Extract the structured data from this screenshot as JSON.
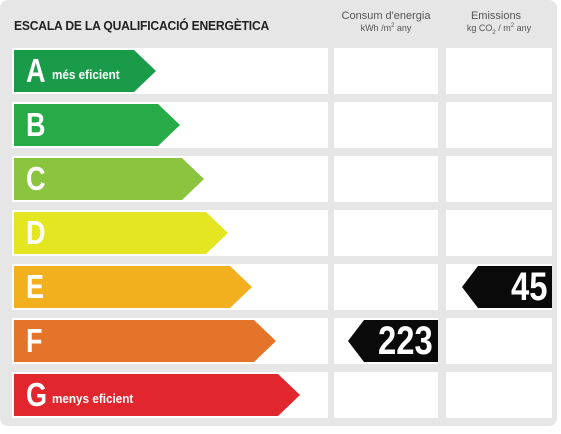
{
  "header": {
    "title": "ESCALA DE LA QUALIFICACIÓ ENERGÈTICA",
    "consum": {
      "line1": "Consum d'energia",
      "unit_pre": "kWh /m",
      "unit_sup": "2",
      "unit_post": " any"
    },
    "emissions": {
      "line1": "Emissions",
      "unit_pre": "kg CO",
      "unit_sub": "2",
      "unit_mid": " / m",
      "unit_sup": "2",
      "unit_post": " any"
    }
  },
  "ratings": [
    {
      "letter": "A",
      "label": "més eficient",
      "color": "#1a9b4a"
    },
    {
      "letter": "B",
      "label": "",
      "color": "#27ab47"
    },
    {
      "letter": "C",
      "label": "",
      "color": "#8bc53f"
    },
    {
      "letter": "D",
      "label": "",
      "color": "#e4e621"
    },
    {
      "letter": "E",
      "label": "",
      "color": "#f2b01f"
    },
    {
      "letter": "F",
      "label": "",
      "color": "#e4742a"
    },
    {
      "letter": "G",
      "label": "menys eficient",
      "color": "#e2262d"
    }
  ],
  "values": {
    "consum": {
      "rating": "F",
      "value": "223"
    },
    "emissions": {
      "rating": "E",
      "value": "45"
    }
  }
}
